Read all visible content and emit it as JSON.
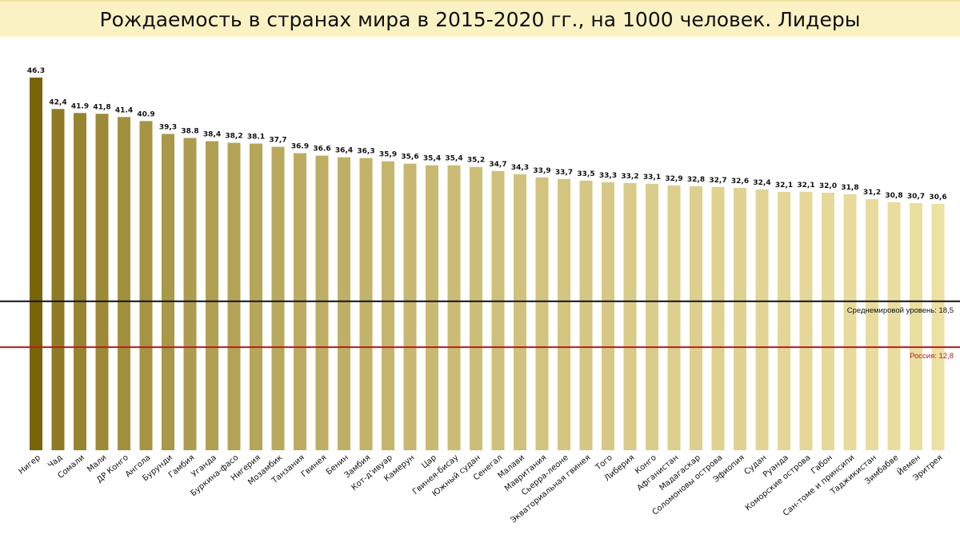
{
  "title": "Рождаемость в странах мира в 2015-2020 гг., на 1000 человек. Лидеры",
  "chart_data": {
    "type": "bar",
    "title": "Рождаемость в странах мира в 2015-2020 гг., на 1000 человек. Лидеры",
    "categories": [
      "Нигер",
      "Чад",
      "Сомали",
      "Мали",
      "ДР Конго",
      "Ангола",
      "Бурунди",
      "Гамбия",
      "Уганда",
      "Буркина-фасо",
      "Нигерия",
      "Мозамбик",
      "Танзания",
      "Гвинея",
      "Бенин",
      "Замбия",
      "Кот-д'ивуар",
      "Камерун",
      "Цар",
      "Гвинея-бисау",
      "Южный судан",
      "Сенегал",
      "Малави",
      "Мавритания",
      "Сьерра-леоне",
      "Экваториальная гвинея",
      "Того",
      "Либерия",
      "Конго",
      "Афганистан",
      "Мадагаскар",
      "Соломоновы острова",
      "Эфиопия",
      "Судан",
      "Руанда",
      "Коморские острова",
      "Габон",
      "Сан-томе и принсипи",
      "Таджикистан",
      "Зимбабве",
      "Йемен",
      "Эритрея"
    ],
    "values": [
      46.3,
      42.4,
      41.9,
      41.8,
      41.4,
      40.9,
      39.3,
      38.8,
      38.4,
      38.2,
      38.1,
      37.7,
      36.9,
      36.6,
      36.4,
      36.3,
      35.9,
      35.6,
      35.4,
      35.4,
      35.2,
      34.7,
      34.3,
      33.9,
      33.7,
      33.5,
      33.3,
      33.2,
      33.1,
      32.9,
      32.8,
      32.7,
      32.6,
      32.4,
      32.1,
      32.1,
      32.0,
      31.8,
      31.2,
      30.8,
      30.7,
      30.6
    ],
    "value_labels": [
      "46.3",
      "42,4",
      "41.9",
      "41,8",
      "41.4",
      "40.9",
      "39,3",
      "38.8",
      "38,4",
      "38,2",
      "38.1",
      "37,7",
      "36.9",
      "36.6",
      "36,4",
      "36,3",
      "35,9",
      "35,6",
      "35,4",
      "35,4",
      "35,2",
      "34,7",
      "34,3",
      "33,9",
      "33,7",
      "33,5",
      "33,3",
      "33,2",
      "33,1",
      "32,9",
      "32,8",
      "32,7",
      "32,6",
      "32,4",
      "32,1",
      "32,1",
      "32,0",
      "31,8",
      "31,2",
      "30,8",
      "30,7",
      "30,6"
    ],
    "ylim": [
      0,
      46.3
    ],
    "grid": false,
    "reference_lines": [
      {
        "label": "Среднемировой уровень: 18,5",
        "value": 18.5,
        "color": "#111111"
      },
      {
        "label": "Россия: 12,8",
        "value": 12.8,
        "color": "#b71c1c"
      }
    ],
    "bar_color_dark": "#7a6408",
    "bar_color_light": "#ece0a2"
  }
}
